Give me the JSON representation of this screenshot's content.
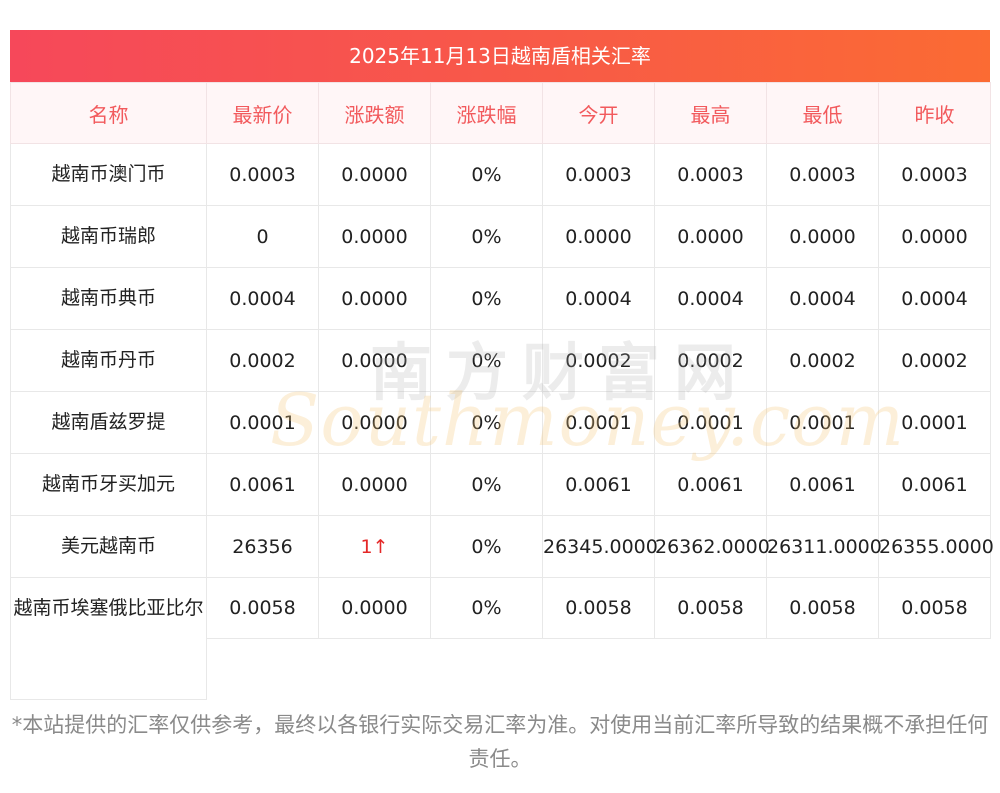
{
  "title": "2025年11月13日越南盾相关汇率",
  "headers": [
    "名称",
    "最新价",
    "涨跌额",
    "涨跌幅",
    "今开",
    "最高",
    "最低",
    "昨收"
  ],
  "rows": [
    {
      "name": "越南币澳门币",
      "latest": "0.0003",
      "change": "0.0000",
      "change_pct": "0%",
      "open": "0.0003",
      "high": "0.0003",
      "low": "0.0003",
      "prev_close": "0.0003"
    },
    {
      "name": "越南币瑞郎",
      "latest": "0",
      "change": "0.0000",
      "change_pct": "0%",
      "open": "0.0000",
      "high": "0.0000",
      "low": "0.0000",
      "prev_close": "0.0000"
    },
    {
      "name": "越南币典币",
      "latest": "0.0004",
      "change": "0.0000",
      "change_pct": "0%",
      "open": "0.0004",
      "high": "0.0004",
      "low": "0.0004",
      "prev_close": "0.0004"
    },
    {
      "name": "越南币丹币",
      "latest": "0.0002",
      "change": "0.0000",
      "change_pct": "0%",
      "open": "0.0002",
      "high": "0.0002",
      "low": "0.0002",
      "prev_close": "0.0002"
    },
    {
      "name": "越南盾兹罗提",
      "latest": "0.0001",
      "change": "0.0000",
      "change_pct": "0%",
      "open": "0.0001",
      "high": "0.0001",
      "low": "0.0001",
      "prev_close": "0.0001"
    },
    {
      "name": "越南币牙买加元",
      "latest": "0.0061",
      "change": "0.0000",
      "change_pct": "0%",
      "open": "0.0061",
      "high": "0.0061",
      "low": "0.0061",
      "prev_close": "0.0061"
    },
    {
      "name": "美元越南币",
      "latest": "26356",
      "change": "1↑",
      "change_pct": "0%",
      "open": "26345.0000",
      "high": "26362.0000",
      "low": "26311.0000",
      "prev_close": "26355.0000"
    },
    {
      "name": "越南币埃塞俄比亚比尔",
      "latest": "0.0058",
      "change": "0.0000",
      "change_pct": "0%",
      "open": "0.0058",
      "high": "0.0058",
      "low": "0.0058",
      "prev_close": "0.0058"
    }
  ],
  "watermark": {
    "cn": "南方财富网",
    "en": "Southmoney.com"
  },
  "disclaimer": "*本站提供的汇率仅供参考，最终以各银行实际交易汇率为准。对使用当前汇率所导致的结果概不承担任何责任。",
  "colors": {
    "header_text": "#f25a5d",
    "title_gradient_start": "#f6485a",
    "title_gradient_end": "#fb6b33",
    "rise": "#e42828"
  }
}
